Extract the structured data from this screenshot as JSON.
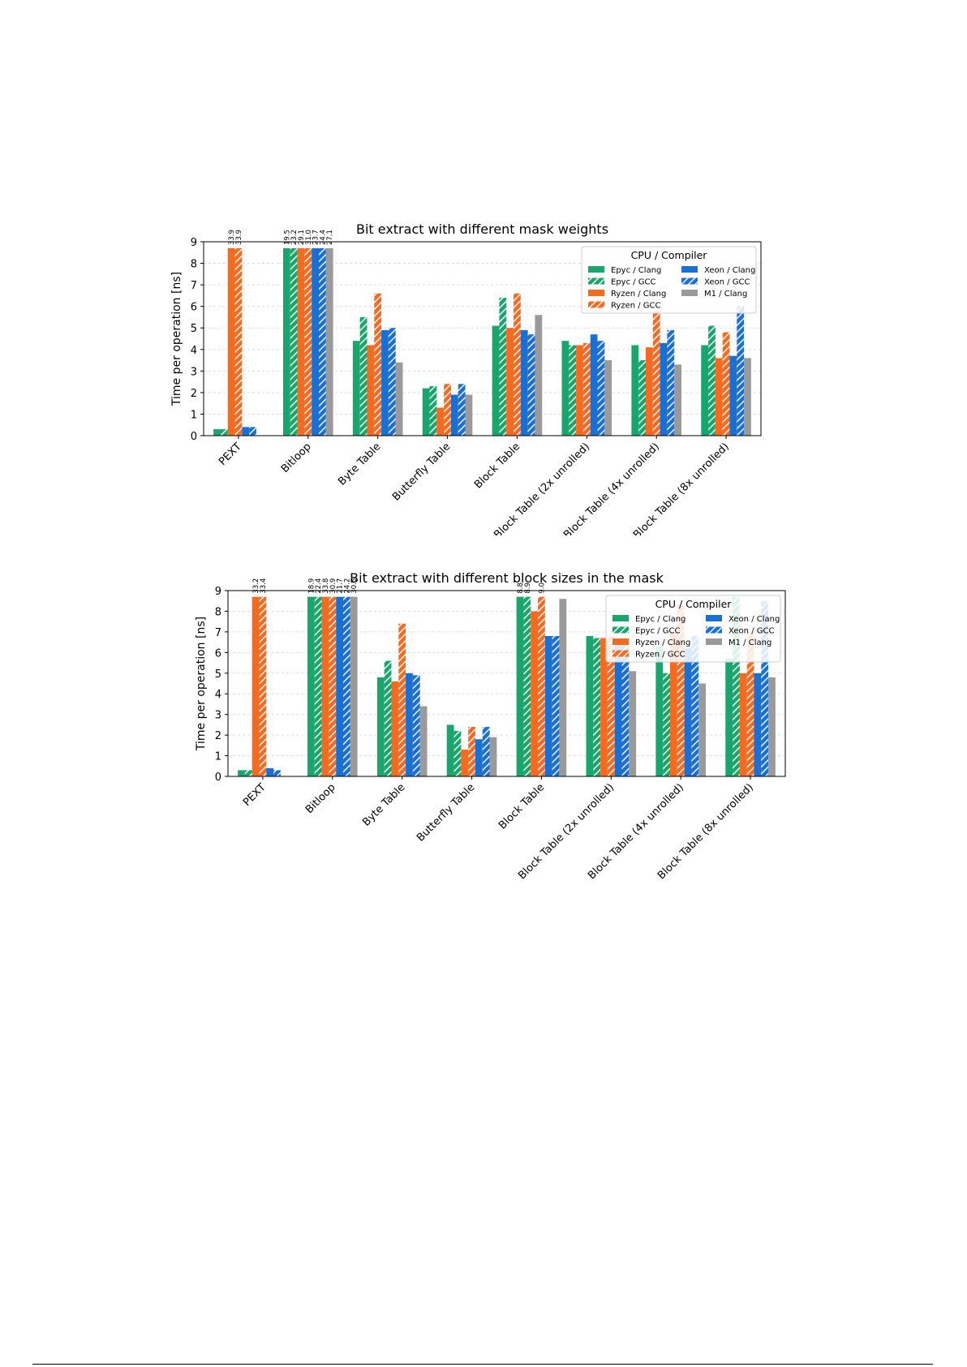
{
  "colors": {
    "epyc": "#1ba56e",
    "ryzen": "#f26b21",
    "xeon": "#1a6fd1",
    "m1": "#9a9a9a",
    "grid": "#dddddd"
  },
  "chart_data": [
    {
      "type": "bar",
      "title": "Bit extract with different mask weights",
      "ylabel": "Time per operation [ns]",
      "xlabel": "",
      "ylim": [
        0,
        9
      ],
      "yticks": [
        "0",
        "1",
        "2",
        "3",
        "4",
        "5",
        "6",
        "7",
        "8",
        "9"
      ],
      "grid": "y-dashed",
      "legend": {
        "title": "CPU / Compiler",
        "placement": "top-right"
      },
      "categories": [
        "PEXT",
        "Bitloop",
        "Byte Table",
        "Butterfly Table",
        "Block Table",
        "Block Table (2x unrolled)",
        "Block Table (4x unrolled)",
        "Block Table (8x unrolled)"
      ],
      "series": [
        {
          "name": "Epyc / Clang",
          "color": "epyc",
          "hatch": false,
          "values": [
            0.3,
            8.7,
            4.4,
            2.2,
            5.1,
            4.4,
            4.2,
            4.2
          ],
          "overflow_labels": [
            null,
            "19.5",
            null,
            null,
            null,
            null,
            null,
            null
          ]
        },
        {
          "name": "Epyc / GCC",
          "color": "epyc",
          "hatch": true,
          "values": [
            0.3,
            8.7,
            5.5,
            2.3,
            6.4,
            4.2,
            3.5,
            5.1
          ],
          "overflow_labels": [
            null,
            "23.2",
            null,
            null,
            null,
            null,
            null,
            null
          ]
        },
        {
          "name": "Ryzen / Clang",
          "color": "ryzen",
          "hatch": false,
          "values": [
            8.7,
            8.7,
            4.2,
            1.3,
            5.0,
            4.2,
            4.1,
            3.6
          ],
          "overflow_labels": [
            "33.9",
            "29.1",
            null,
            null,
            null,
            null,
            null,
            null
          ]
        },
        {
          "name": "Ryzen / GCC",
          "color": "ryzen",
          "hatch": true,
          "values": [
            8.7,
            8.7,
            6.6,
            2.4,
            6.6,
            4.3,
            5.8,
            4.8
          ],
          "overflow_labels": [
            "33.9",
            "31.0",
            null,
            null,
            null,
            null,
            null,
            null
          ]
        },
        {
          "name": "Xeon / Clang",
          "color": "xeon",
          "hatch": false,
          "values": [
            0.4,
            8.7,
            4.9,
            1.9,
            4.9,
            4.7,
            4.3,
            3.7
          ],
          "overflow_labels": [
            null,
            "23.7",
            null,
            null,
            null,
            null,
            null,
            null
          ]
        },
        {
          "name": "Xeon / GCC",
          "color": "xeon",
          "hatch": true,
          "values": [
            0.4,
            8.7,
            5.0,
            2.4,
            4.7,
            4.4,
            4.9,
            6.0
          ],
          "overflow_labels": [
            null,
            "24.4",
            null,
            null,
            null,
            null,
            null,
            null
          ]
        },
        {
          "name": "M1 / Clang",
          "color": "m1",
          "hatch": false,
          "values": [
            null,
            8.7,
            3.4,
            1.9,
            5.6,
            3.5,
            3.3,
            3.6
          ],
          "overflow_labels": [
            null,
            "27.1",
            null,
            null,
            null,
            null,
            null,
            null
          ]
        }
      ]
    },
    {
      "type": "bar",
      "title": "Bit extract with different block sizes in the mask",
      "ylabel": "Time per operation [ns]",
      "xlabel": "",
      "ylim": [
        0,
        9
      ],
      "yticks": [
        "0",
        "1",
        "2",
        "3",
        "4",
        "5",
        "6",
        "7",
        "8",
        "9"
      ],
      "grid": "y-dashed",
      "legend": {
        "title": "CPU / Compiler",
        "placement": "top-right"
      },
      "categories": [
        "PEXT",
        "Bitloop",
        "Byte Table",
        "Butterfly Table",
        "Block Table",
        "Block Table (2x unrolled)",
        "Block Table (4x unrolled)",
        "Block Table (8x unrolled)"
      ],
      "series": [
        {
          "name": "Epyc / Clang",
          "color": "epyc",
          "hatch": false,
          "values": [
            0.3,
            8.7,
            4.8,
            2.5,
            8.7,
            6.8,
            6.3,
            5.7
          ],
          "overflow_labels": [
            null,
            "18.9",
            null,
            null,
            "8.8",
            null,
            null,
            null
          ]
        },
        {
          "name": "Epyc / GCC",
          "color": "epyc",
          "hatch": true,
          "values": [
            0.3,
            8.7,
            5.6,
            2.2,
            8.7,
            6.7,
            5.0,
            8.7
          ],
          "overflow_labels": [
            null,
            "22.4",
            null,
            null,
            "8.9",
            null,
            null,
            null
          ]
        },
        {
          "name": "Ryzen / Clang",
          "color": "ryzen",
          "hatch": false,
          "values": [
            8.7,
            8.7,
            4.6,
            1.3,
            8.0,
            6.7,
            7.0,
            5.0
          ],
          "overflow_labels": [
            "33.2",
            "33.8",
            null,
            null,
            null,
            null,
            null,
            null
          ]
        },
        {
          "name": "Ryzen / GCC",
          "color": "ryzen",
          "hatch": true,
          "values": [
            8.7,
            8.7,
            7.4,
            2.4,
            8.7,
            6.8,
            8.3,
            7.0
          ],
          "overflow_labels": [
            "33.4",
            "30.9",
            null,
            null,
            "9.0",
            null,
            null,
            null
          ]
        },
        {
          "name": "Xeon / Clang",
          "color": "xeon",
          "hatch": false,
          "values": [
            0.4,
            8.7,
            5.0,
            1.8,
            6.8,
            6.4,
            6.2,
            5.0
          ],
          "overflow_labels": [
            null,
            "21.7",
            null,
            null,
            null,
            null,
            null,
            null
          ]
        },
        {
          "name": "Xeon / GCC",
          "color": "xeon",
          "hatch": true,
          "values": [
            0.3,
            8.7,
            4.9,
            2.4,
            6.8,
            6.5,
            6.8,
            8.5
          ],
          "overflow_labels": [
            null,
            "24.2",
            null,
            null,
            null,
            null,
            null,
            null
          ]
        },
        {
          "name": "M1 / Clang",
          "color": "m1",
          "hatch": false,
          "values": [
            null,
            8.7,
            3.4,
            1.9,
            8.6,
            5.1,
            4.5,
            4.8
          ],
          "overflow_labels": [
            null,
            "30.5",
            null,
            null,
            null,
            null,
            null,
            null
          ]
        }
      ]
    }
  ]
}
